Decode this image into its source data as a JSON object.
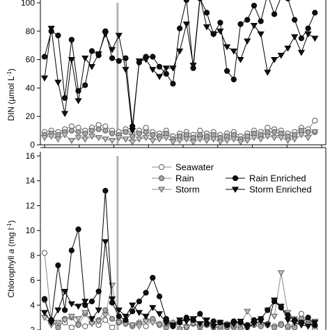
{
  "chart_data": [
    {
      "type": "line",
      "ylabel_parts": [
        "DIN (",
        "µ",
        "mol L",
        "-1",
        ")"
      ],
      "ylim": [
        0,
        100
      ],
      "yticks": [
        "0",
        "20",
        "40",
        "60",
        "80",
        "100"
      ],
      "xlim": [
        0,
        41
      ],
      "vline_x": 10.8,
      "series": [
        {
          "name": "Seawater",
          "marker": "circle-open",
          "x": [
            0,
            1,
            2,
            3,
            4,
            5,
            6,
            7,
            8,
            9,
            10,
            11,
            12,
            13,
            14,
            15,
            16,
            17,
            18,
            19,
            20,
            21,
            22,
            23,
            24,
            25,
            26,
            27,
            28,
            29,
            30,
            31,
            32,
            33,
            34,
            35,
            36,
            37,
            38,
            39,
            40
          ],
          "y": [
            9,
            10,
            9,
            11,
            13,
            12,
            10,
            12,
            14,
            13,
            10,
            9,
            11,
            8,
            10,
            12,
            9,
            8,
            10,
            6,
            8,
            9,
            7,
            10,
            8,
            9,
            7,
            8,
            9,
            6,
            8,
            10,
            9,
            12,
            11,
            10,
            8,
            9,
            12,
            11,
            17
          ]
        },
        {
          "name": "Rain",
          "marker": "circle-grey",
          "x": [
            0,
            1,
            2,
            3,
            4,
            5,
            6,
            7,
            8,
            9,
            10,
            11,
            12,
            13,
            14,
            15,
            16,
            17,
            18,
            19,
            20,
            21,
            22,
            23,
            24,
            25,
            26,
            27,
            28,
            29,
            30,
            31,
            32,
            33,
            34,
            35,
            36,
            37,
            38,
            39,
            40
          ],
          "y": [
            7,
            8,
            7,
            9,
            10,
            9,
            8,
            10,
            11,
            10,
            8,
            7,
            9,
            6,
            8,
            9,
            7,
            6,
            8,
            4,
            6,
            7,
            5,
            7,
            6,
            7,
            5,
            6,
            7,
            4,
            6,
            8,
            7,
            9,
            9,
            8,
            6,
            7,
            10,
            9,
            9
          ]
        },
        {
          "name": "Storm",
          "marker": "triangle-down-grey",
          "x": [
            0,
            1,
            2,
            3,
            4,
            5,
            6,
            7,
            8,
            9,
            10,
            11,
            12,
            13,
            14,
            15,
            16,
            17,
            18,
            19,
            20,
            21,
            22,
            23,
            24,
            25,
            26,
            27,
            28,
            29,
            30,
            31,
            32,
            33,
            34,
            35,
            36,
            37,
            38,
            39,
            40
          ],
          "y": [
            5,
            6,
            4,
            7,
            3,
            5,
            4,
            6,
            5,
            4,
            3,
            5,
            4,
            2,
            4,
            5,
            3,
            4,
            5,
            2,
            3,
            4,
            2,
            4,
            3,
            4,
            2,
            3,
            4,
            2,
            3,
            5,
            4,
            6,
            5,
            5,
            3,
            4,
            7,
            5,
            9
          ]
        },
        {
          "name": "Rain Enriched",
          "marker": "circle-black",
          "x": [
            0,
            1,
            2,
            3,
            4,
            5,
            6,
            7,
            8,
            9,
            10,
            11,
            12,
            13,
            14,
            15,
            16,
            17,
            18,
            19,
            20,
            21,
            22,
            23,
            24,
            25,
            26,
            27,
            28,
            29,
            30,
            31,
            32,
            33,
            34,
            35,
            36,
            37,
            38,
            39,
            40
          ],
          "y": [
            62,
            80,
            77,
            33,
            74,
            38,
            42,
            66,
            63,
            80,
            61,
            59,
            61,
            13,
            58,
            62,
            62,
            55,
            50,
            43,
            82,
            102,
            54,
            103,
            93,
            78,
            86,
            52,
            46,
            85,
            88,
            98,
            87,
            106,
            92,
            104,
            103,
            88,
            75,
            82,
            93
          ]
        },
        {
          "name": "Storm Enriched",
          "marker": "triangle-down-black",
          "x": [
            0,
            1,
            2,
            3,
            4,
            5,
            6,
            7,
            8,
            9,
            10,
            11,
            12,
            13,
            14,
            15,
            16,
            17,
            18,
            19,
            20,
            21,
            22,
            23,
            24,
            25,
            26,
            27,
            28,
            29,
            30,
            31,
            32,
            33,
            34,
            35,
            36,
            37,
            38,
            39,
            40
          ],
          "y": [
            47,
            82,
            44,
            22,
            60,
            31,
            61,
            55,
            64,
            78,
            67,
            77,
            53,
            10,
            59,
            60,
            53,
            48,
            54,
            54,
            66,
            85,
            56,
            104,
            83,
            78,
            80,
            69,
            66,
            60,
            73,
            84,
            78,
            51,
            60,
            63,
            68,
            76,
            65,
            78,
            75
          ]
        }
      ]
    },
    {
      "type": "line",
      "ylabel_parts": [
        "Chlorophyll ",
        "a",
        " (mg l",
        "-1",
        ")"
      ],
      "ylim": [
        2,
        16
      ],
      "yticks": [
        "2",
        "4",
        "6",
        "8",
        "10",
        "12",
        "14",
        "16"
      ],
      "xlim": [
        0,
        41
      ],
      "vline_x": 10.8,
      "legend": {
        "placement": "top-center",
        "entries": [
          "Seawater",
          "Rain",
          "Storm",
          "Rain Enriched",
          "Storm Enriched"
        ]
      },
      "series": [
        {
          "name": "Seawater",
          "marker": "circle-open",
          "x": [
            0,
            1,
            2,
            3,
            4,
            5,
            6,
            7,
            8,
            9,
            10,
            11,
            12,
            13,
            14,
            15,
            16,
            17,
            18,
            19,
            20,
            21,
            22,
            23,
            24,
            25,
            26,
            27,
            28,
            29,
            30,
            31,
            32,
            33,
            34,
            35,
            36,
            37,
            38,
            39,
            40
          ],
          "y": [
            8.2,
            2.8,
            2.4,
            2.6,
            2.2,
            2.5,
            2.3,
            2.6,
            2.4,
            2.8,
            2.2,
            2.7,
            2.5,
            2.4,
            2.6,
            2.3,
            2.8,
            2.5,
            2.4,
            2.3,
            2.6,
            2.2,
            2.5,
            2.3,
            2.4,
            2.2,
            2.3,
            2.5,
            2.2,
            2.4,
            2.3,
            2.6,
            2.5,
            2.4,
            2.3,
            2.5,
            2.2,
            2.4,
            3.3,
            2.6,
            2.1
          ]
        },
        {
          "name": "Rain",
          "marker": "circle-grey",
          "x": [
            0,
            1,
            2,
            3,
            4,
            5,
            6,
            7,
            8,
            9,
            10,
            11,
            12,
            13,
            14,
            15,
            16,
            17,
            18,
            19,
            20,
            21,
            22,
            23,
            24,
            25,
            26,
            27,
            28,
            29,
            30,
            31,
            32,
            33,
            34,
            35,
            36,
            37,
            38,
            39,
            40
          ],
          "y": [
            4.4,
            2.7,
            2.2,
            2.9,
            3.0,
            2.4,
            3.3,
            2.6,
            2.8,
            3.6,
            2.9,
            2.6,
            2.7,
            2.3,
            2.5,
            2.8,
            2.9,
            2.4,
            2.2,
            2.6,
            2.1,
            2.3,
            2.5,
            2.2,
            2.4,
            2.3,
            2.1,
            2.2,
            2.3,
            2.1,
            2.2,
            2.4,
            2.3,
            2.5,
            2.2,
            2.4,
            2.3,
            2.2,
            2.9,
            2.5,
            2.3
          ]
        },
        {
          "name": "Storm",
          "marker": "triangle-down-grey",
          "x": [
            0,
            1,
            2,
            3,
            4,
            5,
            6,
            7,
            8,
            9,
            10,
            11,
            12,
            13,
            14,
            15,
            16,
            17,
            18,
            19,
            20,
            21,
            22,
            23,
            24,
            25,
            26,
            27,
            28,
            29,
            30,
            31,
            32,
            33,
            34,
            35,
            36,
            37,
            38,
            39,
            40
          ],
          "y": [
            3.0,
            2.4,
            2.6,
            2.8,
            3.1,
            2.9,
            3.4,
            2.5,
            2.7,
            3.2,
            5.6,
            2.6,
            2.5,
            2.4,
            2.3,
            2.7,
            2.6,
            2.4,
            2.5,
            2.3,
            2.6,
            2.2,
            2.5,
            2.3,
            2.4,
            2.2,
            2.3,
            2.2,
            2.4,
            2.5,
            3.5,
            2.7,
            2.9,
            3.6,
            3.1,
            6.6,
            3.4,
            2.9,
            2.6,
            2.4,
            2.7
          ]
        },
        {
          "name": "Rain Enriched",
          "marker": "circle-black",
          "x": [
            0,
            1,
            2,
            3,
            4,
            5,
            6,
            7,
            8,
            9,
            10,
            11,
            12,
            13,
            14,
            15,
            16,
            17,
            18,
            19,
            20,
            21,
            22,
            23,
            24,
            25,
            26,
            27,
            28,
            29,
            30,
            31,
            32,
            33,
            34,
            35,
            36,
            37,
            38,
            39,
            40
          ],
          "y": [
            4.5,
            2.8,
            7.2,
            3.6,
            8.4,
            10.1,
            4.0,
            4.3,
            5.1,
            13.2,
            4.2,
            3.1,
            2.8,
            3.5,
            4.3,
            5.0,
            6.2,
            4.7,
            2.9,
            2.3,
            2.6,
            3.0,
            2.8,
            3.3,
            2.5,
            2.7,
            2.6,
            2.4,
            2.7,
            2.6,
            2.4,
            2.8,
            2.9,
            3.6,
            4.3,
            3.8,
            3.2,
            2.8,
            2.6,
            3.0,
            2.4
          ]
        },
        {
          "name": "Storm Enriched",
          "marker": "triangle-down-black",
          "x": [
            0,
            1,
            2,
            3,
            4,
            5,
            6,
            7,
            8,
            9,
            10,
            11,
            12,
            13,
            14,
            15,
            16,
            17,
            18,
            19,
            20,
            21,
            22,
            23,
            24,
            25,
            26,
            27,
            28,
            29,
            30,
            31,
            32,
            33,
            34,
            35,
            36,
            37,
            38,
            39,
            40
          ],
          "y": [
            3.4,
            2.6,
            3.6,
            5.1,
            4.1,
            3.9,
            4.3,
            2.9,
            3.6,
            9.1,
            4.5,
            3.6,
            3.1,
            4.0,
            3.4,
            3.1,
            3.8,
            3.3,
            2.6,
            2.4,
            2.8,
            2.7,
            2.9,
            2.5,
            2.8,
            2.3,
            2.6,
            2.4,
            2.5,
            2.7,
            2.2,
            2.5,
            2.7,
            2.4,
            4.4,
            3.9,
            2.8,
            2.6,
            2.4,
            2.3,
            2.6
          ]
        }
      ]
    }
  ]
}
